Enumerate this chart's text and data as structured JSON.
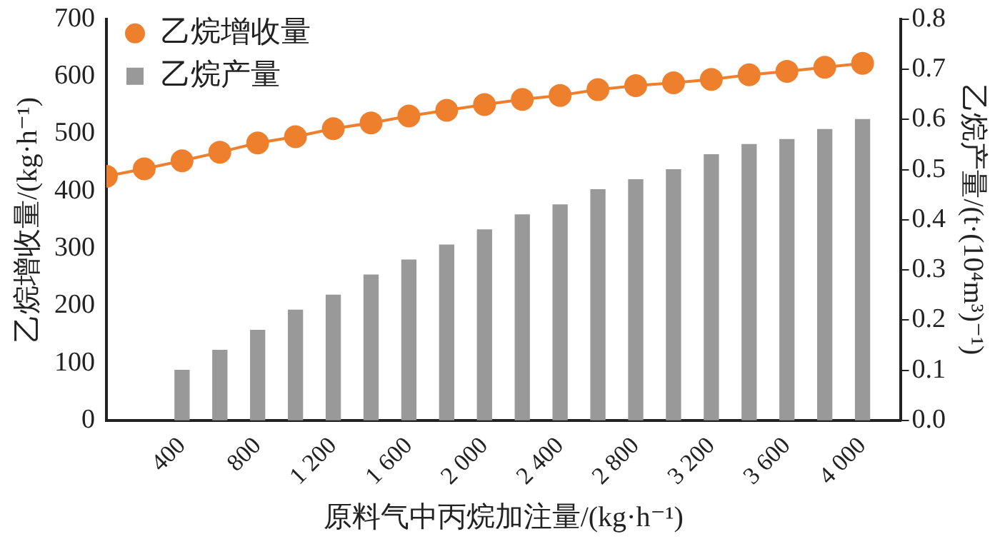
{
  "chart_data": {
    "type": "bar",
    "xlabel": "原料气中丙烷加注量/(kg·h⁻¹)",
    "ylabel": "乙烷增收量/(kg·h⁻¹)",
    "y2label": "乙烷产量/(t·(10⁴m³)⁻¹)",
    "xlim": [
      0,
      4200
    ],
    "xticks": [
      400,
      800,
      {
        "value": 1200,
        "label": "1 200"
      },
      {
        "value": 1600,
        "label": "1 600"
      },
      {
        "value": 2000,
        "label": "2 000"
      },
      {
        "value": 2400,
        "label": "2 400"
      },
      {
        "value": 2800,
        "label": "2 800"
      },
      {
        "value": 3200,
        "label": "3 200"
      },
      {
        "value": 3600,
        "label": "3 600"
      },
      {
        "value": 4000,
        "label": "4 000"
      }
    ],
    "ylim": [
      0,
      700
    ],
    "yticks": [
      0,
      100,
      200,
      300,
      400,
      500,
      600,
      700
    ],
    "y2lim": [
      0,
      0.8
    ],
    "y2ticks": [
      {
        "value": 0,
        "label": "0.0"
      },
      0.1,
      0.2,
      0.3,
      0.4,
      0.5,
      0.6,
      0.7,
      0.8
    ],
    "grid": false,
    "legend": "top left",
    "series": [
      {
        "name": "乙烷增收量",
        "type": "line",
        "color": "#ee7f2d",
        "marker": "circle",
        "line_style": "solid",
        "x": [
          0,
          200,
          400,
          600,
          800,
          1000,
          1200,
          1400,
          1600,
          1800,
          2000,
          2200,
          2400,
          2600,
          2800,
          3000,
          3200,
          3400,
          3600,
          3800,
          4000
        ],
        "values": [
          426,
          439,
          453,
          468,
          484,
          495,
          509,
          519,
          531,
          541,
          551,
          560,
          567,
          577,
          584,
          589,
          595,
          603,
          609,
          616,
          623
        ]
      },
      {
        "name": "乙烷产量",
        "axis": "y2",
        "color": "#999999",
        "x": [
          400,
          600,
          800,
          1000,
          1200,
          1400,
          1600,
          1800,
          2000,
          2200,
          2400,
          2600,
          2800,
          3000,
          3200,
          3400,
          3600,
          3800,
          4000
        ],
        "values": [
          0.1,
          0.14,
          0.18,
          0.22,
          0.25,
          0.29,
          0.32,
          0.35,
          0.38,
          0.41,
          0.43,
          0.46,
          0.48,
          0.5,
          0.53,
          0.55,
          0.56,
          0.58,
          0.6
        ]
      }
    ]
  }
}
